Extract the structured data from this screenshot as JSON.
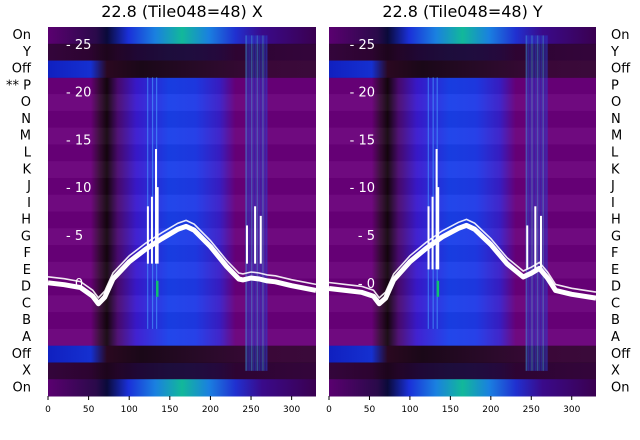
{
  "chart_data": [
    {
      "type": "heatmap",
      "title": "22.8 (Tile048=48) X",
      "row_labels": [
        "On",
        "Y",
        "Off",
        "** P",
        "O",
        "N",
        "M",
        "L",
        "K",
        "J",
        "I",
        "H",
        "G",
        "F",
        "E",
        "D",
        "C",
        "B",
        "A",
        "Off",
        "X",
        "On"
      ],
      "xlim": [
        0,
        330
      ],
      "x_ticks": [
        0,
        50,
        100,
        150,
        200,
        250,
        300
      ],
      "y_overlay_ticks": [
        0,
        5,
        10,
        15,
        20,
        25
      ],
      "colors": {
        "background": "#6a007a",
        "mid": "#7c0ca0",
        "bright": "#1a3ae8",
        "peak": "#12b89a",
        "dark": "#20081a",
        "line": "#ffffff"
      },
      "overlay_line": {
        "x": [
          0,
          20,
          40,
          55,
          62,
          70,
          80,
          100,
          120,
          140,
          160,
          170,
          180,
          200,
          220,
          235,
          240,
          250,
          260,
          270,
          280,
          300,
          330
        ],
        "y": [
          0,
          -0.2,
          -0.5,
          -1.4,
          -2.2,
          -1.5,
          0.4,
          2.2,
          3.5,
          4.6,
          5.6,
          5.9,
          5.5,
          3.8,
          1.7,
          0.4,
          0.3,
          0.5,
          0.4,
          0.2,
          0.1,
          -0.3,
          -0.8
        ]
      }
    },
    {
      "type": "heatmap",
      "title": "22.8 (Tile048=48) Y",
      "row_labels": [
        "On",
        "Y",
        "Off",
        "P",
        "O",
        "N",
        "M",
        "L",
        "K",
        "J",
        "I",
        "H",
        "G",
        "F",
        "E",
        "D",
        "C",
        "B",
        "A",
        "Off",
        "X",
        "On"
      ],
      "xlim": [
        0,
        330
      ],
      "x_ticks": [
        0,
        50,
        100,
        150,
        200,
        250,
        300
      ],
      "y_overlay_ticks": [
        0,
        5,
        10,
        15,
        20,
        25
      ],
      "colors": {
        "background": "#6a007a",
        "mid": "#7c0ca0",
        "bright": "#1a3ae8",
        "peak": "#12b89a",
        "dark": "#20081a",
        "line": "#ffffff"
      },
      "overlay_line": {
        "x": [
          0,
          20,
          40,
          55,
          62,
          70,
          80,
          100,
          120,
          140,
          160,
          170,
          180,
          200,
          220,
          240,
          250,
          260,
          270,
          280,
          300,
          330
        ],
        "y": [
          -0.6,
          -0.8,
          -1.0,
          -1.4,
          -2.2,
          -1.6,
          0.3,
          2.2,
          3.6,
          4.8,
          5.7,
          6.0,
          5.6,
          4.0,
          2.0,
          0.6,
          1.0,
          1.5,
          0.5,
          -0.8,
          -1.2,
          -1.6
        ]
      }
    }
  ]
}
